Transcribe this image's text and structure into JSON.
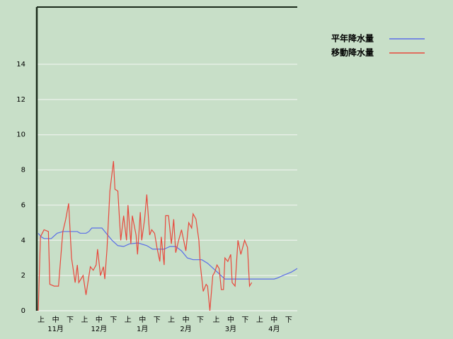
{
  "chart_data": {
    "type": "line",
    "xlim": [
      0,
      180
    ],
    "ylim": [
      0,
      17.25
    ],
    "yticks": [
      0,
      2,
      4,
      6,
      8,
      10,
      12,
      14
    ],
    "grid": true,
    "legend": "top-right",
    "xticks": [
      {
        "value": 3,
        "label": "上"
      },
      {
        "value": 13,
        "label": "中"
      },
      {
        "value": 23,
        "label": "下"
      },
      {
        "value": 33,
        "label": "上"
      },
      {
        "value": 43,
        "label": "中"
      },
      {
        "value": 53,
        "label": "下"
      },
      {
        "value": 63,
        "label": "上"
      },
      {
        "value": 73,
        "label": "中"
      },
      {
        "value": 83,
        "label": "下"
      },
      {
        "value": 93,
        "label": "上"
      },
      {
        "value": 103,
        "label": "中"
      },
      {
        "value": 113,
        "label": "下"
      },
      {
        "value": 124,
        "label": "上"
      },
      {
        "value": 134,
        "label": "中"
      },
      {
        "value": 144,
        "label": "下"
      },
      {
        "value": 154,
        "label": "上"
      },
      {
        "value": 164,
        "label": "中"
      },
      {
        "value": 174,
        "label": "下"
      }
    ],
    "month_labels": [
      {
        "value": 13,
        "label": "11月"
      },
      {
        "value": 43,
        "label": "12月"
      },
      {
        "value": 73,
        "label": "1月"
      },
      {
        "value": 103,
        "label": "2月"
      },
      {
        "value": 134,
        "label": "3月"
      },
      {
        "value": 164,
        "label": "4月"
      }
    ],
    "series": [
      {
        "name": "平年降水量",
        "color": "#5a6ee8",
        "x": [
          1,
          3,
          5,
          10,
          14,
          18,
          28,
          30,
          34,
          36,
          38,
          45,
          48,
          52,
          56,
          60,
          64,
          70,
          76,
          80,
          88,
          92,
          96,
          100,
          104,
          108,
          114,
          118,
          122,
          126,
          130,
          164,
          166,
          170,
          176,
          180
        ],
        "values": [
          4.4,
          4.2,
          4.1,
          4.1,
          4.4,
          4.5,
          4.5,
          4.4,
          4.4,
          4.5,
          4.7,
          4.7,
          4.4,
          4.0,
          3.7,
          3.65,
          3.8,
          3.85,
          3.7,
          3.5,
          3.5,
          3.65,
          3.65,
          3.4,
          3.0,
          2.9,
          2.9,
          2.7,
          2.4,
          2.1,
          1.8,
          1.8,
          1.85,
          2.0,
          2.2,
          2.4
        ]
      },
      {
        "name": "移動降水量",
        "color": "#e8483c",
        "x": [
          1,
          2.5,
          5,
          8,
          9,
          12,
          15,
          17,
          18,
          20,
          22,
          24,
          26.5,
          28,
          29,
          32,
          34,
          37,
          39,
          41,
          42,
          44,
          46,
          47,
          48.5,
          50.5,
          53,
          54,
          56,
          58,
          60,
          62,
          63,
          65,
          66,
          68.6,
          69.6,
          71.5,
          72.5,
          74.5,
          76,
          78,
          79.4,
          81.4,
          83,
          85,
          86,
          88,
          89,
          91,
          93,
          94.6,
          96,
          98,
          100,
          101.5,
          103,
          105,
          107,
          108,
          110,
          112,
          113,
          115,
          117,
          118,
          119.6,
          121.6,
          123,
          124.5,
          126,
          127.5,
          129,
          130,
          132,
          134,
          135,
          137,
          139,
          141,
          143.6,
          145.6,
          147,
          148.5
        ],
        "values": [
          0,
          4.2,
          4.6,
          4.5,
          1.5,
          1.4,
          1.4,
          3.5,
          4.5,
          5.2,
          6.1,
          3.0,
          1.6,
          2.6,
          1.6,
          2.0,
          0.9,
          2.5,
          2.3,
          2.6,
          3.5,
          2.0,
          2.5,
          1.8,
          3.5,
          6.8,
          8.5,
          6.9,
          6.8,
          4.0,
          5.4,
          4.0,
          6.0,
          3.8,
          5.4,
          4.3,
          3.2,
          5.6,
          4.0,
          5.2,
          6.6,
          4.3,
          4.6,
          4.4,
          3.6,
          2.8,
          4.2,
          2.6,
          5.4,
          5.4,
          3.8,
          5.2,
          3.3,
          4.0,
          4.6,
          4.0,
          3.4,
          5.0,
          4.7,
          5.5,
          5.2,
          4.0,
          2.6,
          1.1,
          1.5,
          1.4,
          0.0,
          2.0,
          2.2,
          2.6,
          2.4,
          1.2,
          1.2,
          3.0,
          2.8,
          3.2,
          1.6,
          1.4,
          4.0,
          3.2,
          4.0,
          3.6,
          1.4,
          1.6
        ]
      }
    ]
  }
}
